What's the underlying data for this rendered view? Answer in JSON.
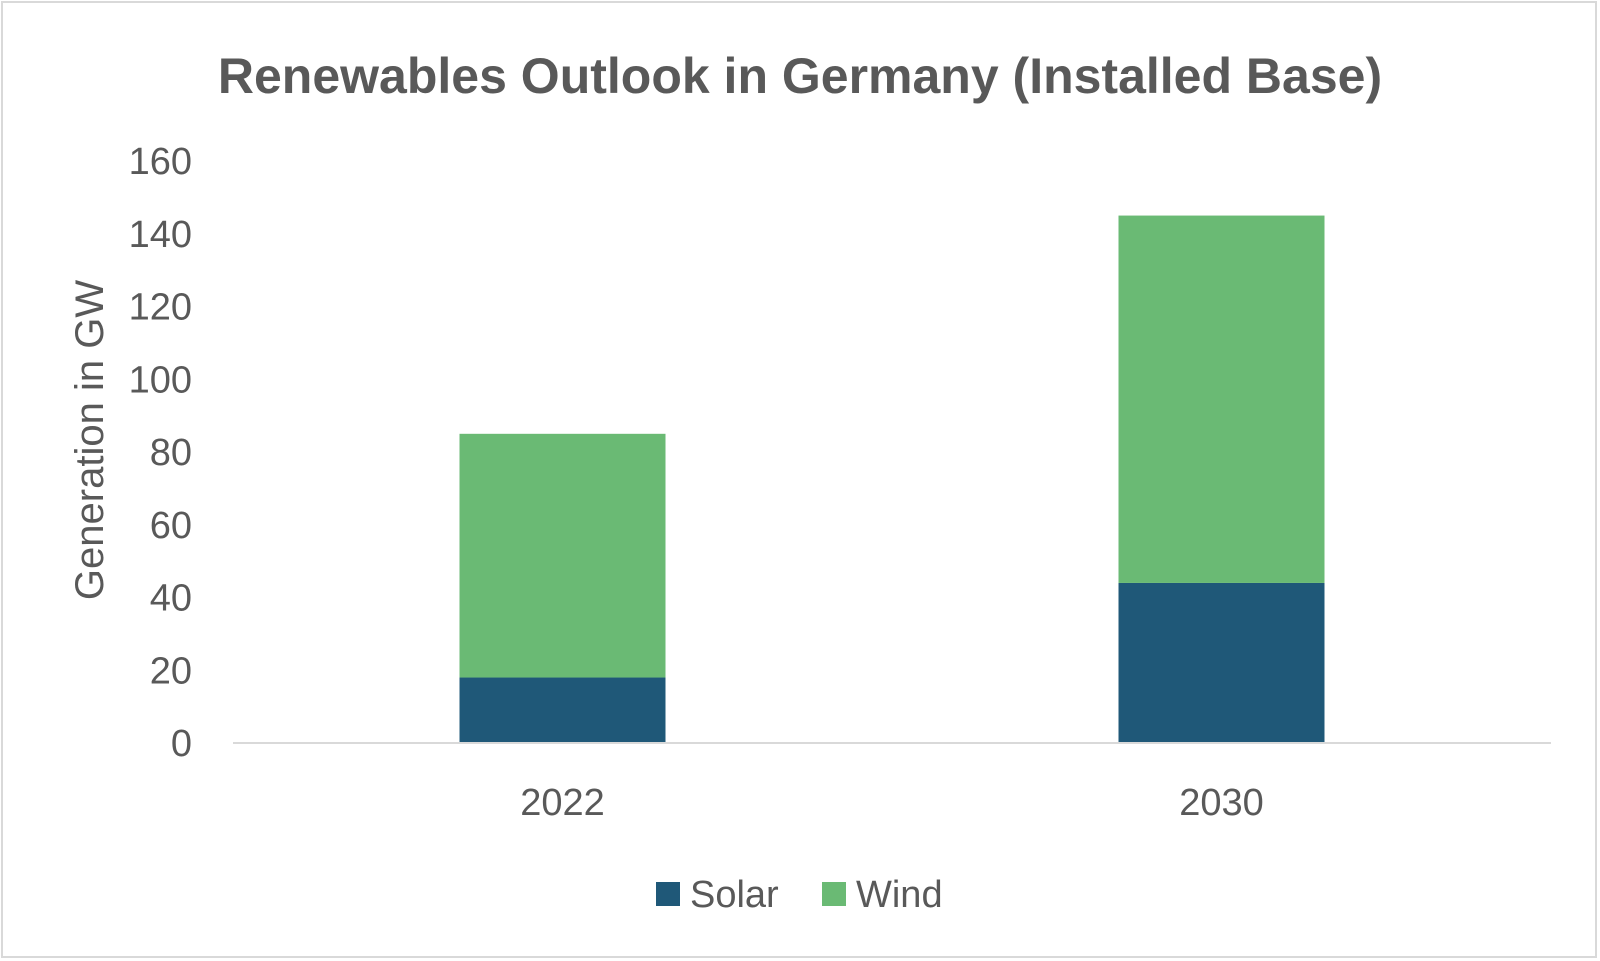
{
  "chart_data": {
    "type": "bar",
    "stacked": true,
    "title": "Renewables Outlook in Germany (Installed Base)",
    "xlabel": "",
    "ylabel": "Generation in GW",
    "categories": [
      "2022",
      "2030"
    ],
    "series": [
      {
        "name": "Solar",
        "color": "#1f5878",
        "values": [
          18,
          44
        ]
      },
      {
        "name": "Wind",
        "color": "#6aba74",
        "values": [
          67,
          101
        ]
      }
    ],
    "ylim": [
      0,
      160
    ],
    "yticks": [
      "0",
      "20",
      "40",
      "60",
      "80",
      "100",
      "120",
      "140",
      "160"
    ],
    "grid": false,
    "legend_position": "bottom"
  }
}
